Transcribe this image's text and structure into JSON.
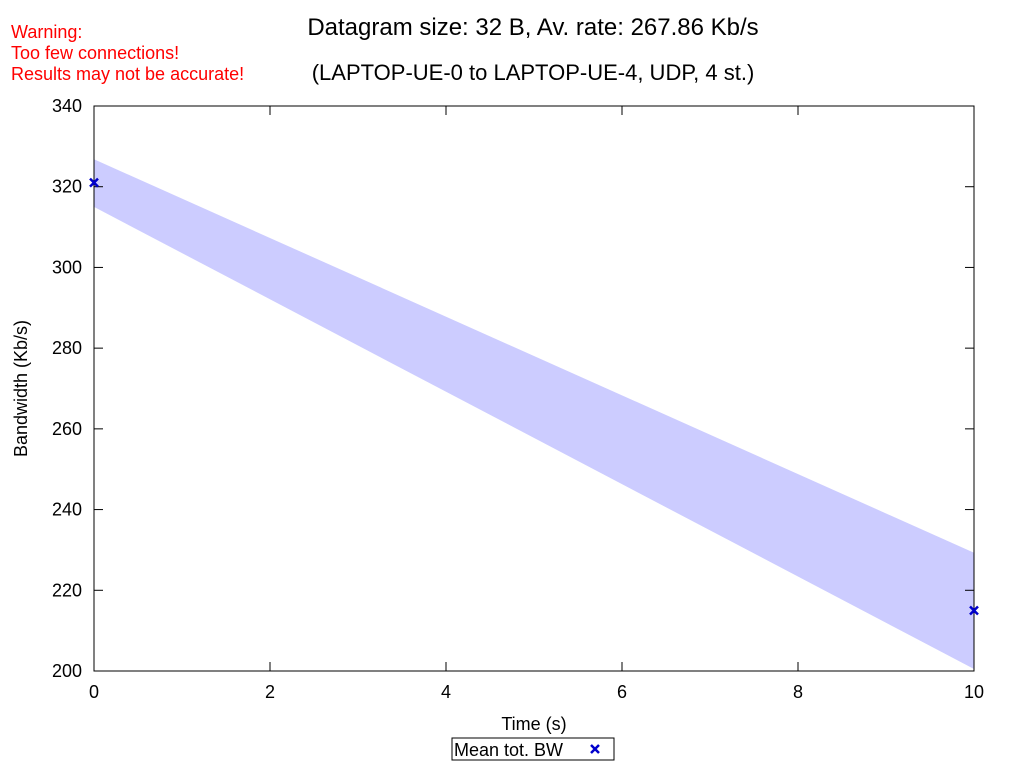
{
  "warning": {
    "line1": "Warning:",
    "line2": "Too few connections!",
    "line3": "Results may not be accurate!",
    "color": "#ff0000"
  },
  "title": {
    "line1": "Datagram size: 32 B, Av. rate: 267.86 Kb/s",
    "line2": "(LAPTOP-UE-0 to LAPTOP-UE-4, UDP, 4 st.)"
  },
  "chart_data": {
    "type": "scatter",
    "xlabel": "Time (s)",
    "ylabel": "Bandwidth (Kb/s)",
    "xlim": [
      0,
      10
    ],
    "ylim": [
      200,
      340
    ],
    "x_ticks": [
      0,
      2,
      4,
      6,
      8,
      10
    ],
    "y_ticks": [
      200,
      220,
      240,
      260,
      280,
      300,
      320,
      340
    ],
    "grid": false,
    "legend_position": "bottom-center",
    "band": {
      "color": "#ccccff",
      "upper": [
        {
          "x": 0,
          "y": 326.8
        },
        {
          "x": 10,
          "y": 229.3
        }
      ],
      "lower": [
        {
          "x": 0,
          "y": 315.0
        },
        {
          "x": 10,
          "y": 200.5
        }
      ]
    },
    "series": [
      {
        "name": "Mean tot. BW",
        "color": "#0000cc",
        "marker": "x",
        "points": [
          {
            "x": 0,
            "y": 321
          },
          {
            "x": 10,
            "y": 215
          }
        ]
      }
    ]
  }
}
